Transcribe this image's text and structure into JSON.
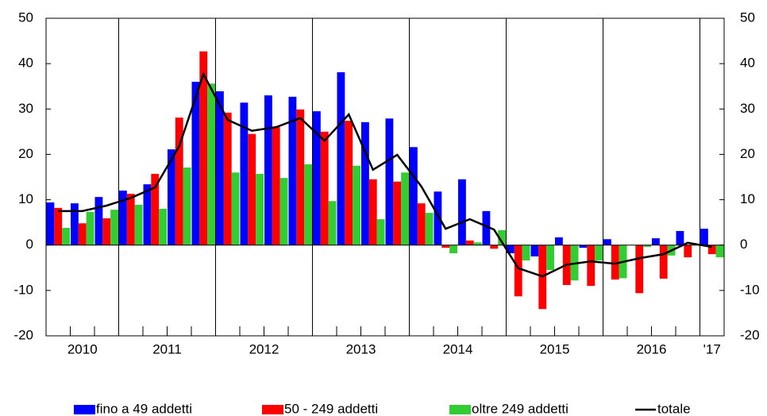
{
  "chart_data": {
    "type": "bar",
    "x_groups": [
      {
        "label": "2010",
        "size": 3
      },
      {
        "label": "2011",
        "size": 4
      },
      {
        "label": "2012",
        "size": 4
      },
      {
        "label": "2013",
        "size": 4
      },
      {
        "label": "2014",
        "size": 4
      },
      {
        "label": "2015",
        "size": 4
      },
      {
        "label": "2016",
        "size": 4
      },
      {
        "label": "'17",
        "size": 1
      }
    ],
    "categories": [
      null,
      null,
      null,
      null,
      null,
      null,
      null,
      null,
      null,
      null,
      null,
      null,
      null,
      null,
      null,
      null,
      null,
      null,
      null,
      null,
      null,
      null,
      null,
      null,
      null,
      null,
      null,
      null
    ],
    "series": [
      {
        "name": "fino a 49 addetti",
        "color": "#0000ff",
        "type": "bar",
        "values": [
          9.4,
          9.2,
          10.6,
          12.0,
          13.4,
          21.1,
          36.0,
          33.9,
          31.4,
          33.0,
          32.7,
          29.5,
          38.1,
          27.1,
          27.9,
          21.6,
          11.8,
          14.5,
          7.5,
          -1.8,
          -2.5,
          1.7,
          -0.6,
          1.3,
          0,
          1.5,
          3.1,
          3.6
        ]
      },
      {
        "name": "50 - 249 addetti",
        "color": "#ff0000",
        "type": "bar",
        "values": [
          8.2,
          4.8,
          5.9,
          11.3,
          15.7,
          28.1,
          42.7,
          29.2,
          24.5,
          26.0,
          29.9,
          25.0,
          27.4,
          14.5,
          14.0,
          9.2,
          -0.6,
          1.0,
          -0.8,
          -11.3,
          -14.1,
          -8.8,
          -9.0,
          -7.6,
          -10.6,
          -7.4,
          -2.7,
          -2.0
        ]
      },
      {
        "name": "oltre 249 addetti",
        "color": "#33cc33",
        "type": "bar",
        "values": [
          3.8,
          7.3,
          7.8,
          8.9,
          8.0,
          17.1,
          35.6,
          16.0,
          15.7,
          14.8,
          17.8,
          9.7,
          17.5,
          5.7,
          16.0,
          7.1,
          -1.8,
          0.6,
          3.3,
          -3.4,
          -5.5,
          -7.8,
          -3.4,
          -7.3,
          -0.4,
          -2.3,
          0.1,
          -2.7
        ]
      },
      {
        "name": "totale",
        "color": "#000000",
        "type": "line",
        "values": [
          7.5,
          7.5,
          8.7,
          10.4,
          12.7,
          21.8,
          37.7,
          27.6,
          25.2,
          26.0,
          28.0,
          23.0,
          28.8,
          16.6,
          19.9,
          12.9,
          3.6,
          5.7,
          3.4,
          -5.1,
          -6.9,
          -4.3,
          -3.6,
          -4.1,
          -2.9,
          -2.0,
          0.5,
          -0.4
        ]
      }
    ],
    "ylim": [
      -20,
      50
    ],
    "yticks": [
      -20,
      -10,
      0,
      10,
      20,
      30,
      40,
      50
    ],
    "y2lim": [
      -20,
      50
    ],
    "y2ticks": [
      -20,
      -10,
      0,
      10,
      20,
      30,
      40,
      50
    ]
  }
}
